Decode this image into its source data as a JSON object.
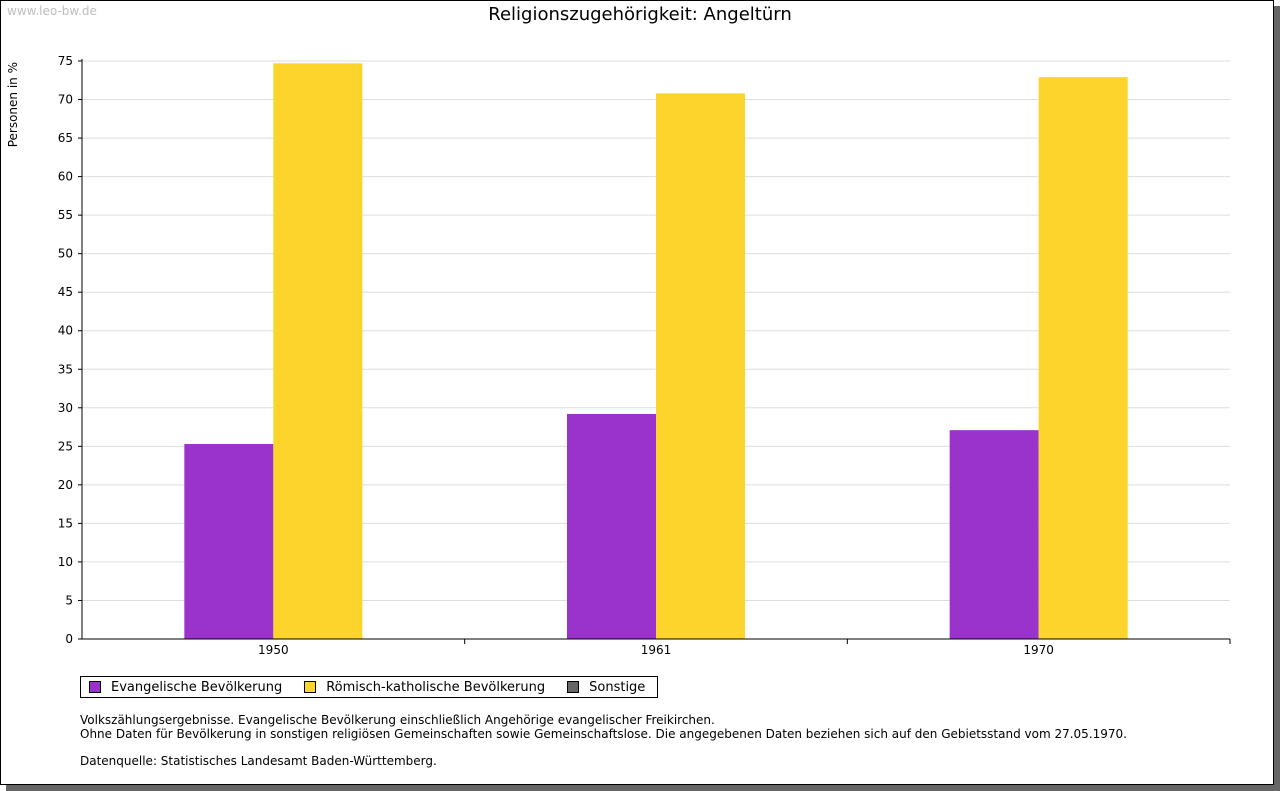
{
  "watermark": "www.leo-bw.de",
  "colors": {
    "evangelisch": "#9933cc",
    "katholisch": "#fcd42c",
    "sonstige": "#666666",
    "grid": "#dddddd",
    "axis": "#000000"
  },
  "chart_data": {
    "type": "bar",
    "title": "Religionszugehörigkeit: Angeltürn",
    "xlabel": "",
    "ylabel": "Personen in %",
    "ylim": [
      0,
      75
    ],
    "yticks": [
      "0",
      "5",
      "10",
      "15",
      "20",
      "25",
      "30",
      "35",
      "40",
      "45",
      "50",
      "55",
      "60",
      "65",
      "70",
      "75"
    ],
    "grid": true,
    "legend_position": "bottom-left",
    "categories": [
      "1950",
      "1961",
      "1970"
    ],
    "series": [
      {
        "name": "Evangelische Bevölkerung",
        "color_key": "evangelisch",
        "values": [
          25.3,
          29.2,
          27.1
        ]
      },
      {
        "name": "Römisch-katholische Bevölkerung",
        "color_key": "katholisch",
        "values": [
          74.7,
          70.8,
          72.9
        ]
      },
      {
        "name": "Sonstige",
        "color_key": "sonstige",
        "values": [
          0,
          0,
          0
        ]
      }
    ]
  },
  "notes": {
    "line1": "Volkszählungsergebnisse. Evangelische Bevölkerung einschließlich Angehörige evangelischer Freikirchen.",
    "line2": "Ohne Daten für Bevölkerung in sonstigen religiösen Gemeinschaften sowie Gemeinschaftslose. Die angegebenen Daten beziehen sich auf den Gebietsstand vom 27.05.1970.",
    "source": "Datenquelle: Statistisches Landesamt Baden-Württemberg."
  }
}
